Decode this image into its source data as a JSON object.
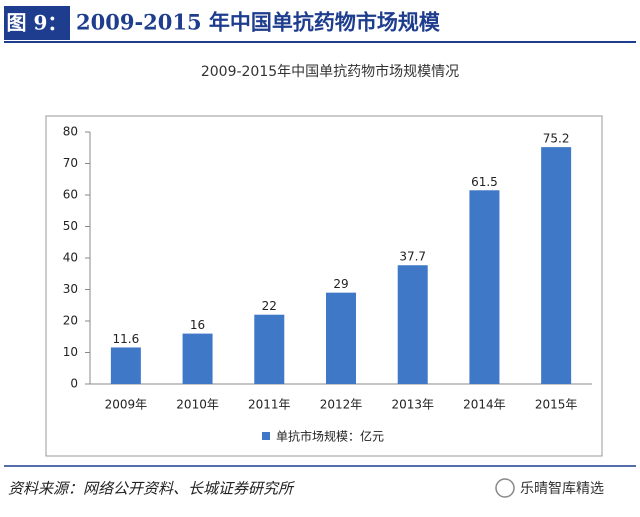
{
  "header": {
    "label": "图 9：",
    "title": "2009-2015 年中国单抗药物市场规模"
  },
  "chart_data": {
    "type": "bar",
    "title": "2009-2015年中国单抗药物市场规模情况",
    "categories": [
      "2009年",
      "2010年",
      "2011年",
      "2012年",
      "2013年",
      "2014年",
      "2015年"
    ],
    "series": [
      {
        "name": "单抗市场规模：亿元",
        "color": "#3f78c6",
        "values": [
          11.6,
          16,
          22,
          29,
          37.7,
          61.5,
          75.2
        ]
      }
    ],
    "ylim": [
      0,
      80
    ],
    "yticks": [
      0,
      10,
      20,
      30,
      40,
      50,
      60,
      70,
      80
    ],
    "grid": false,
    "legend": "bottom"
  },
  "footer": {
    "source": "资料来源：网络公开资料、长城证券研究所",
    "watermark": "乐晴智库精选"
  }
}
